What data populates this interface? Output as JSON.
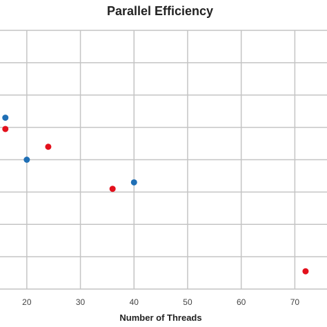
{
  "colors": {
    "grid": "#c4c4c4",
    "series_blue": "#1f6fb5",
    "series_red": "#e3101c"
  },
  "chart_data": {
    "type": "scatter",
    "title": "Parallel Efficiency",
    "xlabel": "Number of Threads",
    "ylabel": "",
    "x_ticks": [
      "20",
      "30",
      "40",
      "50",
      "60",
      "70"
    ],
    "xlim": [
      15,
      76
    ],
    "ylim": [
      0,
      8
    ],
    "y_gridlines": [
      0,
      1,
      2,
      3,
      4,
      5,
      6,
      7,
      8
    ],
    "y_tick_labels_visible": false,
    "grid": true,
    "legend": "none",
    "series": [
      {
        "color": "blue",
        "points": [
          {
            "x": 16,
            "y": 5.3
          },
          {
            "x": 20,
            "y": 4.0
          },
          {
            "x": 40,
            "y": 3.3
          }
        ]
      },
      {
        "color": "red",
        "points": [
          {
            "x": 16,
            "y": 4.95
          },
          {
            "x": 24,
            "y": 4.4
          },
          {
            "x": 36,
            "y": 3.1
          },
          {
            "x": 72,
            "y": 0.55
          }
        ]
      }
    ]
  }
}
